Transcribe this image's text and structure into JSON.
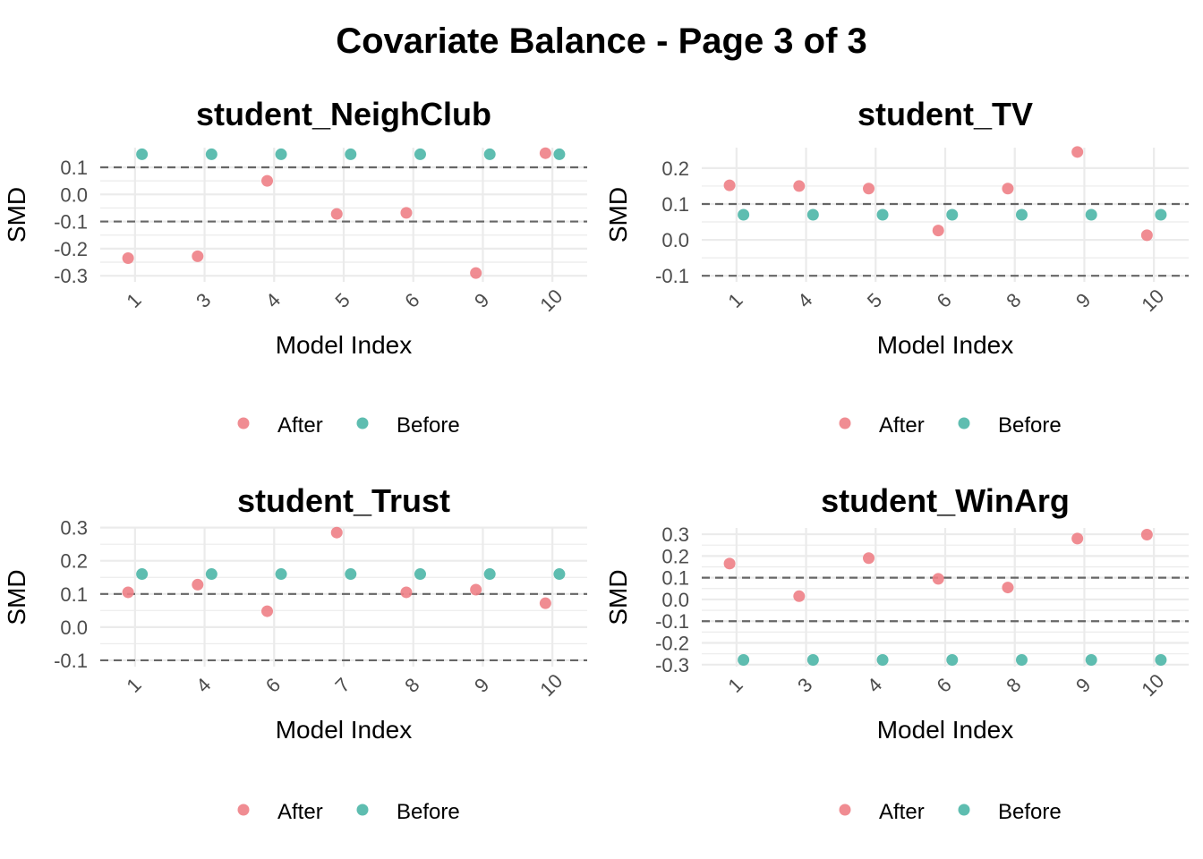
{
  "page_title": "Covariate Balance - Page 3 of 3",
  "colors": {
    "after": "#EE7F86",
    "before": "#4DB6A7",
    "grid": "#EBEBEB",
    "threshold": "#666666"
  },
  "chart_data": [
    {
      "type": "scatter",
      "title": "student_NeighClub",
      "xlabel": "Model Index",
      "ylabel": "SMD",
      "categories": [
        "1",
        "3",
        "4",
        "5",
        "6",
        "9",
        "10"
      ],
      "ylim": [
        -0.3,
        0.15
      ],
      "yticks": [
        -0.3,
        -0.2,
        -0.1,
        0.0,
        0.1
      ],
      "ytick_labels": [
        "-0.3",
        "-0.2",
        "-0.1",
        "0.0",
        "0.1"
      ],
      "thresholds": [
        -0.1,
        0.1
      ],
      "legend": {
        "position": "bottom",
        "labels": [
          "After",
          "Before"
        ]
      },
      "series": [
        {
          "name": "After",
          "values": [
            -0.235,
            -0.228,
            0.05,
            -0.072,
            -0.068,
            -0.29,
            0.152
          ]
        },
        {
          "name": "Before",
          "values": [
            0.148,
            0.148,
            0.148,
            0.148,
            0.148,
            0.148,
            0.148
          ]
        }
      ]
    },
    {
      "type": "scatter",
      "title": "student_TV",
      "xlabel": "Model Index",
      "ylabel": "SMD",
      "categories": [
        "1",
        "4",
        "5",
        "6",
        "8",
        "9",
        "10"
      ],
      "ylim": [
        -0.1,
        0.24
      ],
      "yticks": [
        -0.1,
        0.0,
        0.1,
        0.2
      ],
      "ytick_labels": [
        "-0.1",
        "0.0",
        "0.1",
        "0.2"
      ],
      "thresholds": [
        -0.1,
        0.1
      ],
      "legend": {
        "position": "bottom",
        "labels": [
          "After",
          "Before"
        ]
      },
      "series": [
        {
          "name": "After",
          "values": [
            0.152,
            0.15,
            0.143,
            0.026,
            0.143,
            0.245,
            0.013
          ]
        },
        {
          "name": "Before",
          "values": [
            0.07,
            0.07,
            0.07,
            0.07,
            0.07,
            0.07,
            0.07
          ]
        }
      ]
    },
    {
      "type": "scatter",
      "title": "student_Trust",
      "xlabel": "Model Index",
      "ylabel": "SMD",
      "categories": [
        "1",
        "4",
        "6",
        "7",
        "8",
        "9",
        "10"
      ],
      "ylim": [
        -0.1,
        0.28
      ],
      "yticks": [
        -0.1,
        0.0,
        0.1,
        0.2,
        0.3
      ],
      "ytick_labels": [
        "-0.1",
        "0.0",
        "0.1",
        "0.2",
        "0.3"
      ],
      "thresholds": [
        -0.1,
        0.1
      ],
      "legend": {
        "position": "bottom",
        "labels": [
          "After",
          "Before"
        ]
      },
      "series": [
        {
          "name": "After",
          "values": [
            0.105,
            0.128,
            0.048,
            0.285,
            0.105,
            0.113,
            0.072
          ]
        },
        {
          "name": "Before",
          "values": [
            0.16,
            0.16,
            0.16,
            0.16,
            0.16,
            0.16,
            0.16
          ]
        }
      ]
    },
    {
      "type": "scatter",
      "title": "student_WinArg",
      "xlabel": "Model Index",
      "ylabel": "SMD",
      "categories": [
        "1",
        "3",
        "4",
        "6",
        "8",
        "9",
        "10"
      ],
      "ylim": [
        -0.28,
        0.3
      ],
      "yticks": [
        -0.3,
        -0.2,
        -0.1,
        0.0,
        0.1,
        0.2,
        0.3
      ],
      "ytick_labels": [
        "-0.3",
        "-0.2",
        "-0.1",
        "0.0",
        "0.1",
        "0.2",
        "0.3"
      ],
      "thresholds": [
        -0.1,
        0.1
      ],
      "legend": {
        "position": "bottom",
        "labels": [
          "After",
          "Before"
        ]
      },
      "series": [
        {
          "name": "After",
          "values": [
            0.165,
            0.015,
            0.19,
            0.095,
            0.055,
            0.28,
            0.298
          ]
        },
        {
          "name": "Before",
          "values": [
            -0.278,
            -0.278,
            -0.278,
            -0.278,
            -0.278,
            -0.278,
            -0.278
          ]
        }
      ]
    }
  ]
}
